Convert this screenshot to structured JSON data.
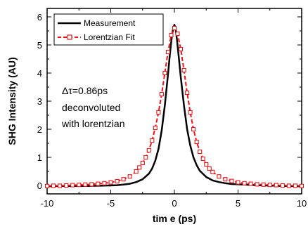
{
  "chart_data": {
    "type": "line",
    "xlabel": "tim e (ps)",
    "ylabel": "SHG Intensity (AU)",
    "xlim": [
      -10,
      10
    ],
    "ylim": [
      -0.3,
      6.3
    ],
    "x_ticks": [
      -10,
      -5,
      0,
      5,
      10
    ],
    "y_ticks": [
      0,
      1,
      2,
      3,
      4,
      5,
      6
    ],
    "x_tick_labels": [
      "-10",
      "-5",
      "0",
      "5",
      "10"
    ],
    "y_tick_labels": [
      "0",
      "1",
      "2",
      "3",
      "4",
      "5",
      "6"
    ],
    "grid": false,
    "legend_position": "top-left",
    "annotation": {
      "lines": [
        "Δτ=0.86ps",
        "deconvoluted",
        "with lorentzian"
      ]
    },
    "series": [
      {
        "name": "Measurement",
        "color": "#000000",
        "style": "solid",
        "x": [
          -10,
          -9,
          -8,
          -7,
          -6,
          -5,
          -4.5,
          -4,
          -3.5,
          -3,
          -2.5,
          -2,
          -1.75,
          -1.5,
          -1.25,
          -1,
          -0.75,
          -0.5,
          -0.35,
          -0.2,
          -0.1,
          0,
          0.1,
          0.2,
          0.35,
          0.5,
          0.75,
          1,
          1.25,
          1.5,
          1.75,
          2,
          2.5,
          3,
          3.5,
          4,
          4.5,
          5,
          6,
          7,
          8,
          9,
          10
        ],
        "y": [
          -0.03,
          -0.02,
          -0.02,
          -0.02,
          -0.01,
          0.0,
          0.01,
          0.03,
          0.06,
          0.12,
          0.22,
          0.42,
          0.6,
          0.88,
          1.3,
          1.95,
          2.85,
          3.95,
          4.7,
          5.3,
          5.58,
          5.72,
          5.55,
          5.2,
          4.55,
          3.85,
          2.85,
          2.0,
          1.42,
          1.0,
          0.72,
          0.52,
          0.3,
          0.18,
          0.12,
          0.08,
          0.05,
          0.04,
          0.02,
          0.0,
          -0.01,
          -0.02,
          -0.03
        ]
      },
      {
        "name": "Lorentzian Fit",
        "color": "#e8161b",
        "style": "dashed-with-open-squares",
        "x": [
          -10,
          -9.5,
          -9,
          -8.5,
          -8,
          -7.5,
          -7,
          -6.5,
          -6,
          -5.5,
          -5,
          -4.5,
          -4,
          -3.5,
          -3,
          -2.75,
          -2.5,
          -2.25,
          -2,
          -1.75,
          -1.5,
          -1.25,
          -1,
          -0.75,
          -0.5,
          -0.25,
          0,
          0.25,
          0.5,
          0.75,
          1,
          1.25,
          1.5,
          1.75,
          2,
          2.25,
          2.5,
          2.75,
          3,
          3.5,
          4,
          4.5,
          5,
          5.5,
          6,
          6.5,
          7,
          7.5,
          8,
          8.5,
          9,
          9.5,
          10
        ],
        "y": [
          -0.02,
          -0.01,
          -0.01,
          0.0,
          0.01,
          0.02,
          0.03,
          0.04,
          0.06,
          0.08,
          0.11,
          0.15,
          0.22,
          0.32,
          0.5,
          0.64,
          0.8,
          1.0,
          1.25,
          1.6,
          2.05,
          2.6,
          3.25,
          4.0,
          4.75,
          5.35,
          5.6,
          5.4,
          4.85,
          4.1,
          3.3,
          2.6,
          2.0,
          1.55,
          1.2,
          0.95,
          0.75,
          0.6,
          0.48,
          0.32,
          0.22,
          0.16,
          0.11,
          0.08,
          0.06,
          0.04,
          0.03,
          0.02,
          0.01,
          0.0,
          -0.01,
          -0.01,
          -0.02
        ]
      }
    ]
  }
}
